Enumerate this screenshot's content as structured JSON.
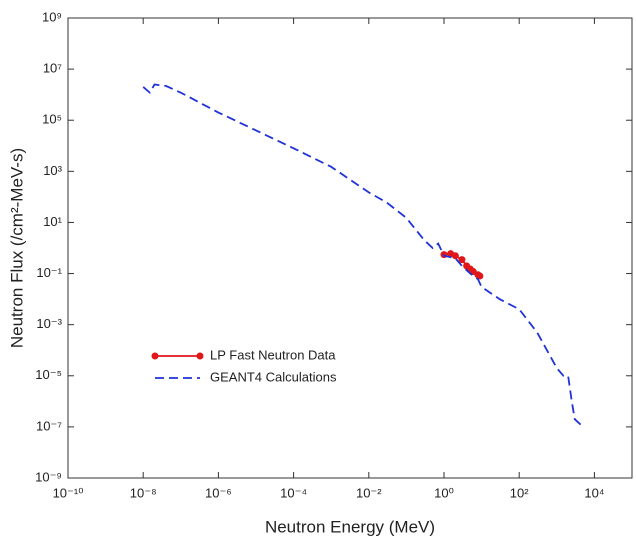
{
  "chart_data": {
    "type": "line",
    "x_label": "Neutron Energy (MeV)",
    "y_label": "Neutron Flux (/cm²-MeV-s)",
    "x_scale": "log",
    "y_scale": "log",
    "xlim": [
      1e-10,
      100000.0
    ],
    "ylim": [
      1e-09,
      1000000000.0
    ],
    "xticks": [
      {
        "value": 1e-10,
        "label": "10⁻¹⁰"
      },
      {
        "value": 1e-08,
        "label": "10⁻⁸"
      },
      {
        "value": 1e-06,
        "label": "10⁻⁶"
      },
      {
        "value": 0.0001,
        "label": "10⁻⁴"
      },
      {
        "value": 0.01,
        "label": "10⁻²"
      },
      {
        "value": 1,
        "label": "10⁰"
      },
      {
        "value": 100,
        "label": "10²"
      },
      {
        "value": 10000,
        "label": "10⁴"
      }
    ],
    "yticks": [
      {
        "value": 1e-09,
        "label": "10⁻⁹"
      },
      {
        "value": 1e-07,
        "label": "10⁻⁷"
      },
      {
        "value": 1e-05,
        "label": "10⁻⁵"
      },
      {
        "value": 0.001,
        "label": "10⁻³"
      },
      {
        "value": 0.1,
        "label": "10⁻¹"
      },
      {
        "value": 10,
        "label": "10¹"
      },
      {
        "value": 1000,
        "label": "10³"
      },
      {
        "value": 100000,
        "label": "10⁵"
      },
      {
        "value": 10000000,
        "label": "10⁷"
      },
      {
        "value": 1000000000,
        "label": "10⁹"
      }
    ],
    "legend": "lower left",
    "series": [
      {
        "name": "LP Fast Neutron Data",
        "color": "#e0161b",
        "style": "solid-markers",
        "x": [
          1,
          1.5,
          2,
          3,
          4,
          5,
          6,
          8,
          9
        ],
        "values": [
          0.55,
          0.6,
          0.5,
          0.35,
          0.2,
          0.15,
          0.12,
          0.09,
          0.08
        ]
      },
      {
        "name": "GEANT4 Calculations",
        "color": "#1f33d6",
        "style": "dashed",
        "x": [
          1e-08,
          1.5e-08,
          2e-08,
          4e-08,
          1e-07,
          1e-06,
          1e-05,
          0.0001,
          0.001,
          0.01,
          0.03,
          0.1,
          0.3,
          0.5,
          0.7,
          1,
          2,
          3,
          5,
          8,
          10,
          30,
          100,
          300,
          1000,
          1500,
          2000,
          2500,
          3000,
          5000
        ],
        "values": [
          2000000,
          1200000,
          2500000,
          2200000,
          1200000,
          200000,
          40000,
          8000,
          1500,
          150,
          60,
          15,
          2,
          1,
          1.5,
          0.5,
          0.4,
          0.2,
          0.1,
          0.06,
          0.03,
          0.01,
          0.004,
          0.0005,
          2e-05,
          1e-05,
          1e-05,
          1e-06,
          2e-07,
          1e-07
        ]
      }
    ]
  }
}
